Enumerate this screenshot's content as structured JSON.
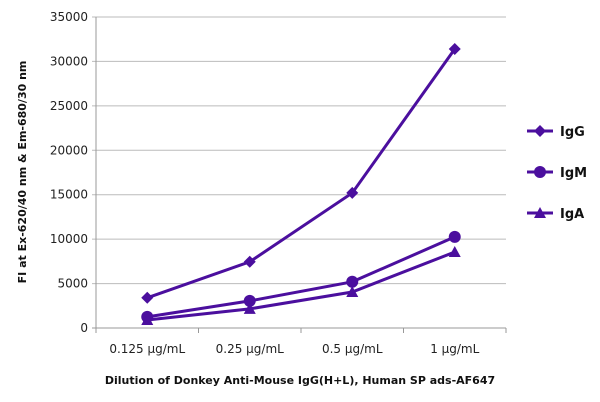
{
  "chart_data": {
    "type": "line",
    "title": "",
    "xlabel": "Dilution of Donkey Anti-Mouse IgG(H+L), Human SP ads-AF647",
    "ylabel": "FI at Ex-620/40 nm & Em-680/30 nm",
    "categories": [
      "0.125 µg/mL",
      "0.25 µg/mL",
      "0.5 µg/mL",
      "1 µg/mL"
    ],
    "ylim": [
      0,
      35000
    ],
    "yticks": [
      "0",
      "5000",
      "10000",
      "15000",
      "20000",
      "25000",
      "30000",
      "35000"
    ],
    "grid": true,
    "legend_position": "right",
    "color": "#4b0f9e",
    "series": [
      {
        "name": "IgG",
        "marker": "diamond",
        "values": [
          3400,
          7450,
          15200,
          31400
        ]
      },
      {
        "name": "IgM",
        "marker": "circle",
        "values": [
          1250,
          3050,
          5200,
          10250
        ]
      },
      {
        "name": "IgA",
        "marker": "triangle",
        "values": [
          900,
          2150,
          4050,
          8550
        ]
      }
    ]
  }
}
